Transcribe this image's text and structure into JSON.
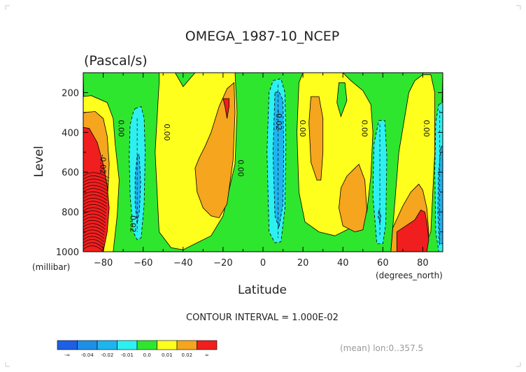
{
  "chart_data": {
    "type": "heatmap",
    "title": "OMEGA_1987-10_NCEP",
    "subtitle": "(Pascal/s)",
    "xlabel": "Latitude",
    "xunits": "(degrees_north)",
    "ylabel": "Level",
    "yunits": "(millibar)",
    "xlim": [
      -90,
      90
    ],
    "ylim": [
      100,
      1000
    ],
    "x_ticks": [
      -80,
      -60,
      -40,
      -20,
      0,
      20,
      40,
      60,
      80
    ],
    "y_ticks": [
      200,
      400,
      600,
      800,
      1000
    ],
    "contour_interval_text": "CONTOUR INTERVAL = 1.000E-02",
    "mean_note": "(mean) lon:0..357.5",
    "contour_labels": [
      {
        "text": "0.00",
        "lat": -71,
        "lev": 380
      },
      {
        "text": "-0.02",
        "lat": -80,
        "lev": 560
      },
      {
        "text": "0.00",
        "lat": -48,
        "lev": 400
      },
      {
        "text": "0.00",
        "lat": -11,
        "lev": 580
      },
      {
        "text": "-0.02",
        "lat": 8,
        "lev": 340
      },
      {
        "text": "0.00",
        "lat": 20,
        "lev": 380
      },
      {
        "text": "0.00",
        "lat": 51,
        "lev": 380
      },
      {
        "text": "0.00",
        "lat": 82,
        "lev": 380
      },
      {
        "text": "0.02",
        "lat": -65,
        "lev": 860
      }
    ],
    "regions": [
      {
        "name": "base-green",
        "bin": "0.0",
        "lat": [
          -90,
          -88,
          88,
          90
        ],
        "lev": [
          100,
          1000,
          1000,
          100
        ]
      },
      {
        "name": "yellow-south-polar",
        "bin": "0.01",
        "lat": [
          -90,
          -86,
          -78,
          -75,
          -74,
          -72,
          -73,
          -75,
          -80,
          -90
        ],
        "lev": [
          220,
          215,
          250,
          330,
          460,
          640,
          820,
          1000,
          1000,
          1000
        ]
      },
      {
        "name": "orange-south-polar",
        "bin": "0.02",
        "lat": [
          -90,
          -84,
          -80,
          -78,
          -77,
          -78,
          -80,
          -90
        ],
        "lev": [
          300,
          295,
          330,
          420,
          560,
          760,
          1000,
          1000
        ]
      },
      {
        "name": "red-south-polar",
        "bin": "inf",
        "lat": [
          -90,
          -87,
          -83,
          -80,
          -78,
          -77,
          -78,
          -80,
          -90
        ],
        "lev": [
          375,
          380,
          450,
          560,
          670,
          780,
          900,
          1000,
          1000
        ]
      },
      {
        "name": "cyan-south",
        "bin": "-0.01",
        "lat": [
          -64,
          -61,
          -59.5,
          -59,
          -59.5,
          -61,
          -63,
          -65,
          -66.5,
          -67,
          -66.5,
          -65
        ],
        "lev": [
          280,
          270,
          330,
          500,
          760,
          930,
          940,
          900,
          720,
          520,
          360,
          300
        ]
      },
      {
        "name": "blue-south",
        "bin": "-0.02",
        "lat": [
          -63,
          -62,
          -61.3,
          -61.8,
          -63,
          -64,
          -64
        ],
        "lev": [
          520,
          510,
          650,
          790,
          860,
          760,
          620
        ]
      },
      {
        "name": "yellow-subtropic-south",
        "bin": "0.01",
        "lat": [
          -52,
          -44,
          -40,
          -34,
          -30,
          -26,
          -22,
          -14,
          -13,
          -14,
          -20,
          -26,
          -34,
          -40,
          -46,
          -52,
          -54,
          -52
        ],
        "lev": [
          100,
          100,
          170,
          100,
          100,
          100,
          100,
          100,
          300,
          560,
          820,
          920,
          960,
          990,
          980,
          900,
          500,
          150
        ]
      },
      {
        "name": "orange-subtropic-south",
        "bin": "0.02",
        "lat": [
          -26,
          -22,
          -18,
          -14.5,
          -14,
          -15,
          -18,
          -22,
          -26,
          -30,
          -33,
          -34,
          -32,
          -29
        ],
        "lev": [
          400,
          270,
          180,
          150,
          300,
          540,
          760,
          830,
          820,
          780,
          700,
          580,
          530,
          470
        ]
      },
      {
        "name": "red-subtropic-south",
        "bin": "inf",
        "lat": [
          -20,
          -17,
          -17,
          -18,
          -19
        ],
        "lev": [
          230,
          230,
          270,
          330,
          270
        ]
      },
      {
        "name": "cyan-equator",
        "bin": "-0.01",
        "lat": [
          5,
          9,
          11,
          11.5,
          11,
          9,
          6,
          3,
          2,
          3
        ],
        "lev": [
          140,
          130,
          200,
          450,
          780,
          950,
          955,
          900,
          500,
          200
        ]
      },
      {
        "name": "blue-equator",
        "bin": "-0.02",
        "lat": [
          6,
          8,
          10,
          10.4,
          10,
          8,
          6,
          5
        ],
        "lev": [
          200,
          195,
          240,
          500,
          760,
          880,
          820,
          500
        ]
      },
      {
        "name": "yellow-north-mid",
        "bin": "0.01",
        "lat": [
          20,
          30,
          40,
          44,
          50,
          54,
          55,
          54,
          52,
          44,
          36,
          28,
          21,
          18,
          17,
          18
        ],
        "lev": [
          100,
          100,
          100,
          140,
          190,
          260,
          400,
          620,
          800,
          880,
          920,
          900,
          850,
          700,
          400,
          150
        ]
      },
      {
        "name": "green-north-dot",
        "bin": "0.0",
        "lat": [
          38,
          41,
          42,
          39,
          37
        ],
        "lev": [
          150,
          150,
          240,
          320,
          250
        ]
      },
      {
        "name": "orange-north-1",
        "bin": "0.02",
        "lat": [
          24,
          28,
          30,
          30,
          29,
          27,
          24,
          23
        ],
        "lev": [
          220,
          220,
          330,
          500,
          640,
          640,
          550,
          350
        ]
      },
      {
        "name": "orange-north-2",
        "bin": "0.02",
        "lat": [
          42,
          48,
          51,
          52,
          50,
          46,
          40,
          38,
          39
        ],
        "lev": [
          620,
          560,
          640,
          790,
          890,
          900,
          870,
          780,
          680
        ]
      },
      {
        "name": "cyan-north",
        "bin": "-0.01",
        "lat": [
          58,
          61,
          62,
          61.5,
          60,
          57,
          55,
          55.5
        ],
        "lev": [
          340,
          340,
          520,
          860,
          960,
          960,
          720,
          460
        ]
      },
      {
        "name": "blue-north-dot",
        "bin": "-0.02",
        "lat": [
          58,
          59,
          58.6,
          57.6
        ],
        "lev": [
          790,
          820,
          860,
          820
        ]
      },
      {
        "name": "yellow-north-polar",
        "bin": "0.01",
        "lat": [
          76,
          80,
          84,
          86,
          86,
          84,
          80,
          74,
          70,
          67,
          64,
          68,
          73
        ],
        "lev": [
          140,
          110,
          110,
          200,
          500,
          900,
          1000,
          1000,
          1000,
          1000,
          1000,
          500,
          200
        ]
      },
      {
        "name": "orange-north-polar",
        "bin": "0.02",
        "lat": [
          70,
          74,
          78,
          80,
          82,
          83,
          82,
          80,
          74,
          69,
          66,
          64,
          65
        ],
        "lev": [
          770,
          700,
          660,
          690,
          780,
          900,
          1000,
          1000,
          1000,
          1000,
          1000,
          1000,
          880
        ]
      },
      {
        "name": "red-north-polar",
        "bin": "inf",
        "lat": [
          76,
          79,
          81,
          82,
          83,
          82,
          78,
          74,
          71,
          67,
          67
        ],
        "lev": [
          840,
          790,
          800,
          850,
          940,
          1000,
          1000,
          1000,
          1000,
          1000,
          900
        ]
      },
      {
        "name": "cyan-north-polar",
        "bin": "-0.01",
        "lat": [
          88,
          90,
          90,
          88,
          86.5,
          86,
          86.5
        ],
        "lev": [
          260,
          250,
          1000,
          1000,
          900,
          600,
          350
        ]
      },
      {
        "name": "blue-north-polar",
        "bin": "-0.02",
        "lat": [
          89,
          90,
          90,
          88.2,
          87.5,
          87.8
        ],
        "lev": [
          480,
          460,
          960,
          960,
          800,
          620
        ]
      }
    ],
    "colorbar": {
      "bins": [
        {
          "key": "-inf",
          "color": "#1e5fe6"
        },
        {
          "key": "-0.04",
          "color": "#1e8fe6"
        },
        {
          "key": "-0.02",
          "color": "#1eb4f0"
        },
        {
          "key": "-0.01",
          "color": "#2ef0f0"
        },
        {
          "key": "0.0",
          "color": "#2ee62e"
        },
        {
          "key": "0.01",
          "color": "#ffff1e"
        },
        {
          "key": "0.02",
          "color": "#f5a51e"
        },
        {
          "key": "inf",
          "color": "#f01e1e"
        }
      ],
      "labels": [
        "-∞",
        "-0.04",
        "-0.02",
        "-0.01",
        "0.0",
        "0.01",
        "0.02",
        "∞"
      ]
    }
  }
}
